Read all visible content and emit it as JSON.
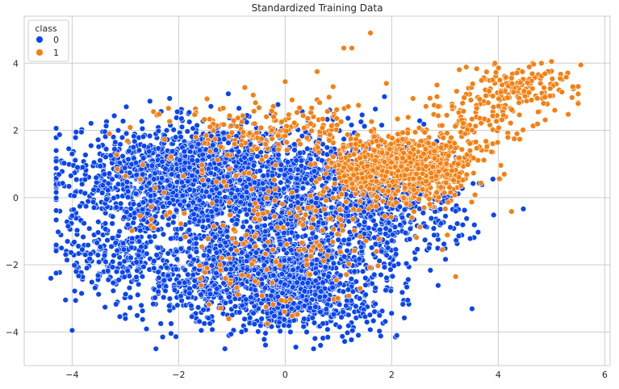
{
  "chart_data": {
    "type": "scatter",
    "title": "Standardized Training Data",
    "xlabel": "",
    "ylabel": "",
    "xlim": [
      -4.9,
      6.1
    ],
    "ylim": [
      -5.0,
      5.4
    ],
    "x_ticks": [
      -4,
      -2,
      0,
      2,
      4,
      6
    ],
    "y_ticks": [
      -4,
      -2,
      0,
      2,
      4
    ],
    "grid": true,
    "legend": {
      "title": "class",
      "placement": "top-left",
      "entries": [
        "0",
        "1"
      ]
    },
    "colors": {
      "0": "#0a45f0",
      "1": "#f57f10"
    },
    "series": [
      {
        "name": "0",
        "clusters": [
          {
            "cx": -1.8,
            "cy": 0.6,
            "sx": 1.1,
            "sy": 0.75,
            "n": 1600
          },
          {
            "cx": -0.6,
            "cy": -2.3,
            "sx": 1.1,
            "sy": 0.75,
            "n": 1300
          },
          {
            "cx": 0.6,
            "cy": 0.0,
            "sx": 1.0,
            "sy": 1.0,
            "n": 1000
          },
          {
            "cx": -3.2,
            "cy": -1.6,
            "sx": 0.6,
            "sy": 0.6,
            "n": 220
          },
          {
            "cx": 2.0,
            "cy": -0.4,
            "sx": 0.8,
            "sy": 0.6,
            "n": 260
          },
          {
            "cx": 0.6,
            "cy": -3.2,
            "sx": 0.7,
            "sy": 0.5,
            "n": 250
          }
        ],
        "points": [
          {
            "x": -4.0,
            "y": -3.95
          },
          {
            "x": -4.4,
            "y": -2.4
          },
          {
            "x": -4.2,
            "y": -1.5
          },
          {
            "x": -4.0,
            "y": 1.3
          },
          {
            "x": -3.9,
            "y": 0.9
          },
          {
            "x": 3.9,
            "y": 0.55
          },
          {
            "x": 3.35,
            "y": 1.05
          },
          {
            "x": 0.2,
            "y": -4.45
          },
          {
            "x": -2.3,
            "y": -4.15
          },
          {
            "x": 3.2,
            "y": -0.4
          },
          {
            "x": 2.7,
            "y": -1.5
          },
          {
            "x": -3.0,
            "y": -3.6
          }
        ]
      },
      {
        "name": "1",
        "clusters": [
          {
            "cx": 2.2,
            "cy": 0.9,
            "sx": 0.65,
            "sy": 0.5,
            "n": 850
          },
          {
            "cx": 4.3,
            "cy": 3.2,
            "sx": 0.55,
            "sy": 0.4,
            "n": 160
          },
          {
            "cx": 3.6,
            "cy": 2.3,
            "sx": 0.5,
            "sy": 0.4,
            "n": 90
          },
          {
            "cx": -0.3,
            "cy": 2.0,
            "sx": 1.0,
            "sy": 0.4,
            "n": 170
          },
          {
            "cx": 0.4,
            "cy": -0.8,
            "sx": 0.9,
            "sy": 0.9,
            "n": 110
          },
          {
            "cx": -1.5,
            "cy": 0.2,
            "sx": 1.1,
            "sy": 0.9,
            "n": 50
          },
          {
            "cx": -0.5,
            "cy": -2.6,
            "sx": 0.9,
            "sy": 0.6,
            "n": 40
          }
        ],
        "points": [
          {
            "x": 1.6,
            "y": 4.9
          },
          {
            "x": 1.1,
            "y": 4.45
          },
          {
            "x": 1.25,
            "y": 4.45
          },
          {
            "x": 5.0,
            "y": 4.05
          },
          {
            "x": 5.55,
            "y": 3.95
          },
          {
            "x": 5.4,
            "y": 3.3
          },
          {
            "x": 0.0,
            "y": 3.45
          },
          {
            "x": 0.6,
            "y": 3.75
          },
          {
            "x": 1.9,
            "y": 3.4
          },
          {
            "x": 3.2,
            "y": -2.35
          },
          {
            "x": 2.4,
            "y": 2.95
          },
          {
            "x": -3.3,
            "y": 1.9
          },
          {
            "x": 4.75,
            "y": 2.55
          },
          {
            "x": 4.3,
            "y": 1.75
          },
          {
            "x": -0.6,
            "y": 3.05
          },
          {
            "x": 0.9,
            "y": 3.3
          },
          {
            "x": 2.85,
            "y": 3.35
          },
          {
            "x": 2.95,
            "y": -1.55
          }
        ]
      }
    ]
  }
}
